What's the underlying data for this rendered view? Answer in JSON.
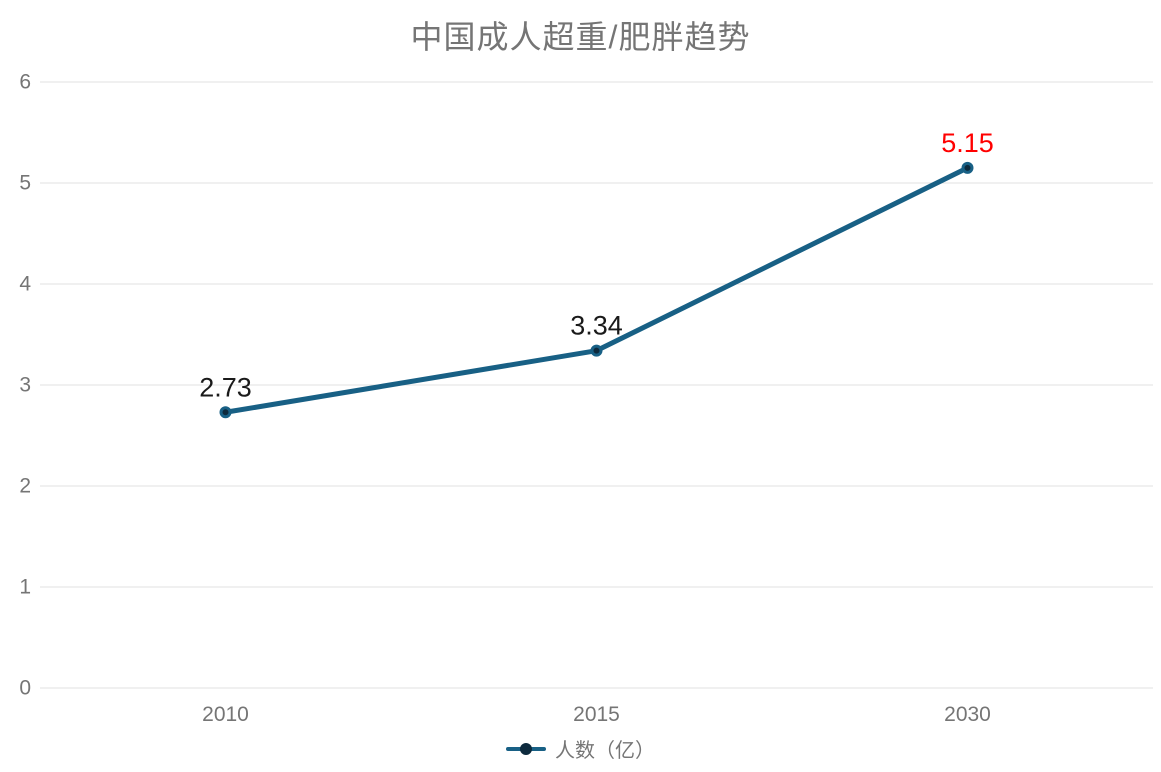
{
  "chart_data": {
    "type": "line",
    "title": "中国成人超重/肥胖趋势",
    "categories": [
      "2010",
      "2015",
      "2030"
    ],
    "series": [
      {
        "name": "人数（亿）",
        "values": [
          2.73,
          3.34,
          5.15
        ]
      }
    ],
    "point_labels": [
      "2.73",
      "3.34",
      "5.15"
    ],
    "point_label_colors": [
      "#1a1a1a",
      "#1a1a1a",
      "#ff0000"
    ],
    "y_ticks": [
      0,
      1,
      2,
      3,
      4,
      5,
      6
    ],
    "ylim": [
      0,
      6
    ],
    "xlabel": "",
    "ylabel": "",
    "grid": true,
    "legend_position": "bottom",
    "colors": {
      "line": "#186085",
      "marker": "#0d2a3d",
      "point_label_default": "#1a1a1a",
      "point_label_highlight": "#ff0000",
      "axis_text": "#757575",
      "title_text": "#757575",
      "grid": "#e0e0e0",
      "background": "#ffffff"
    }
  }
}
